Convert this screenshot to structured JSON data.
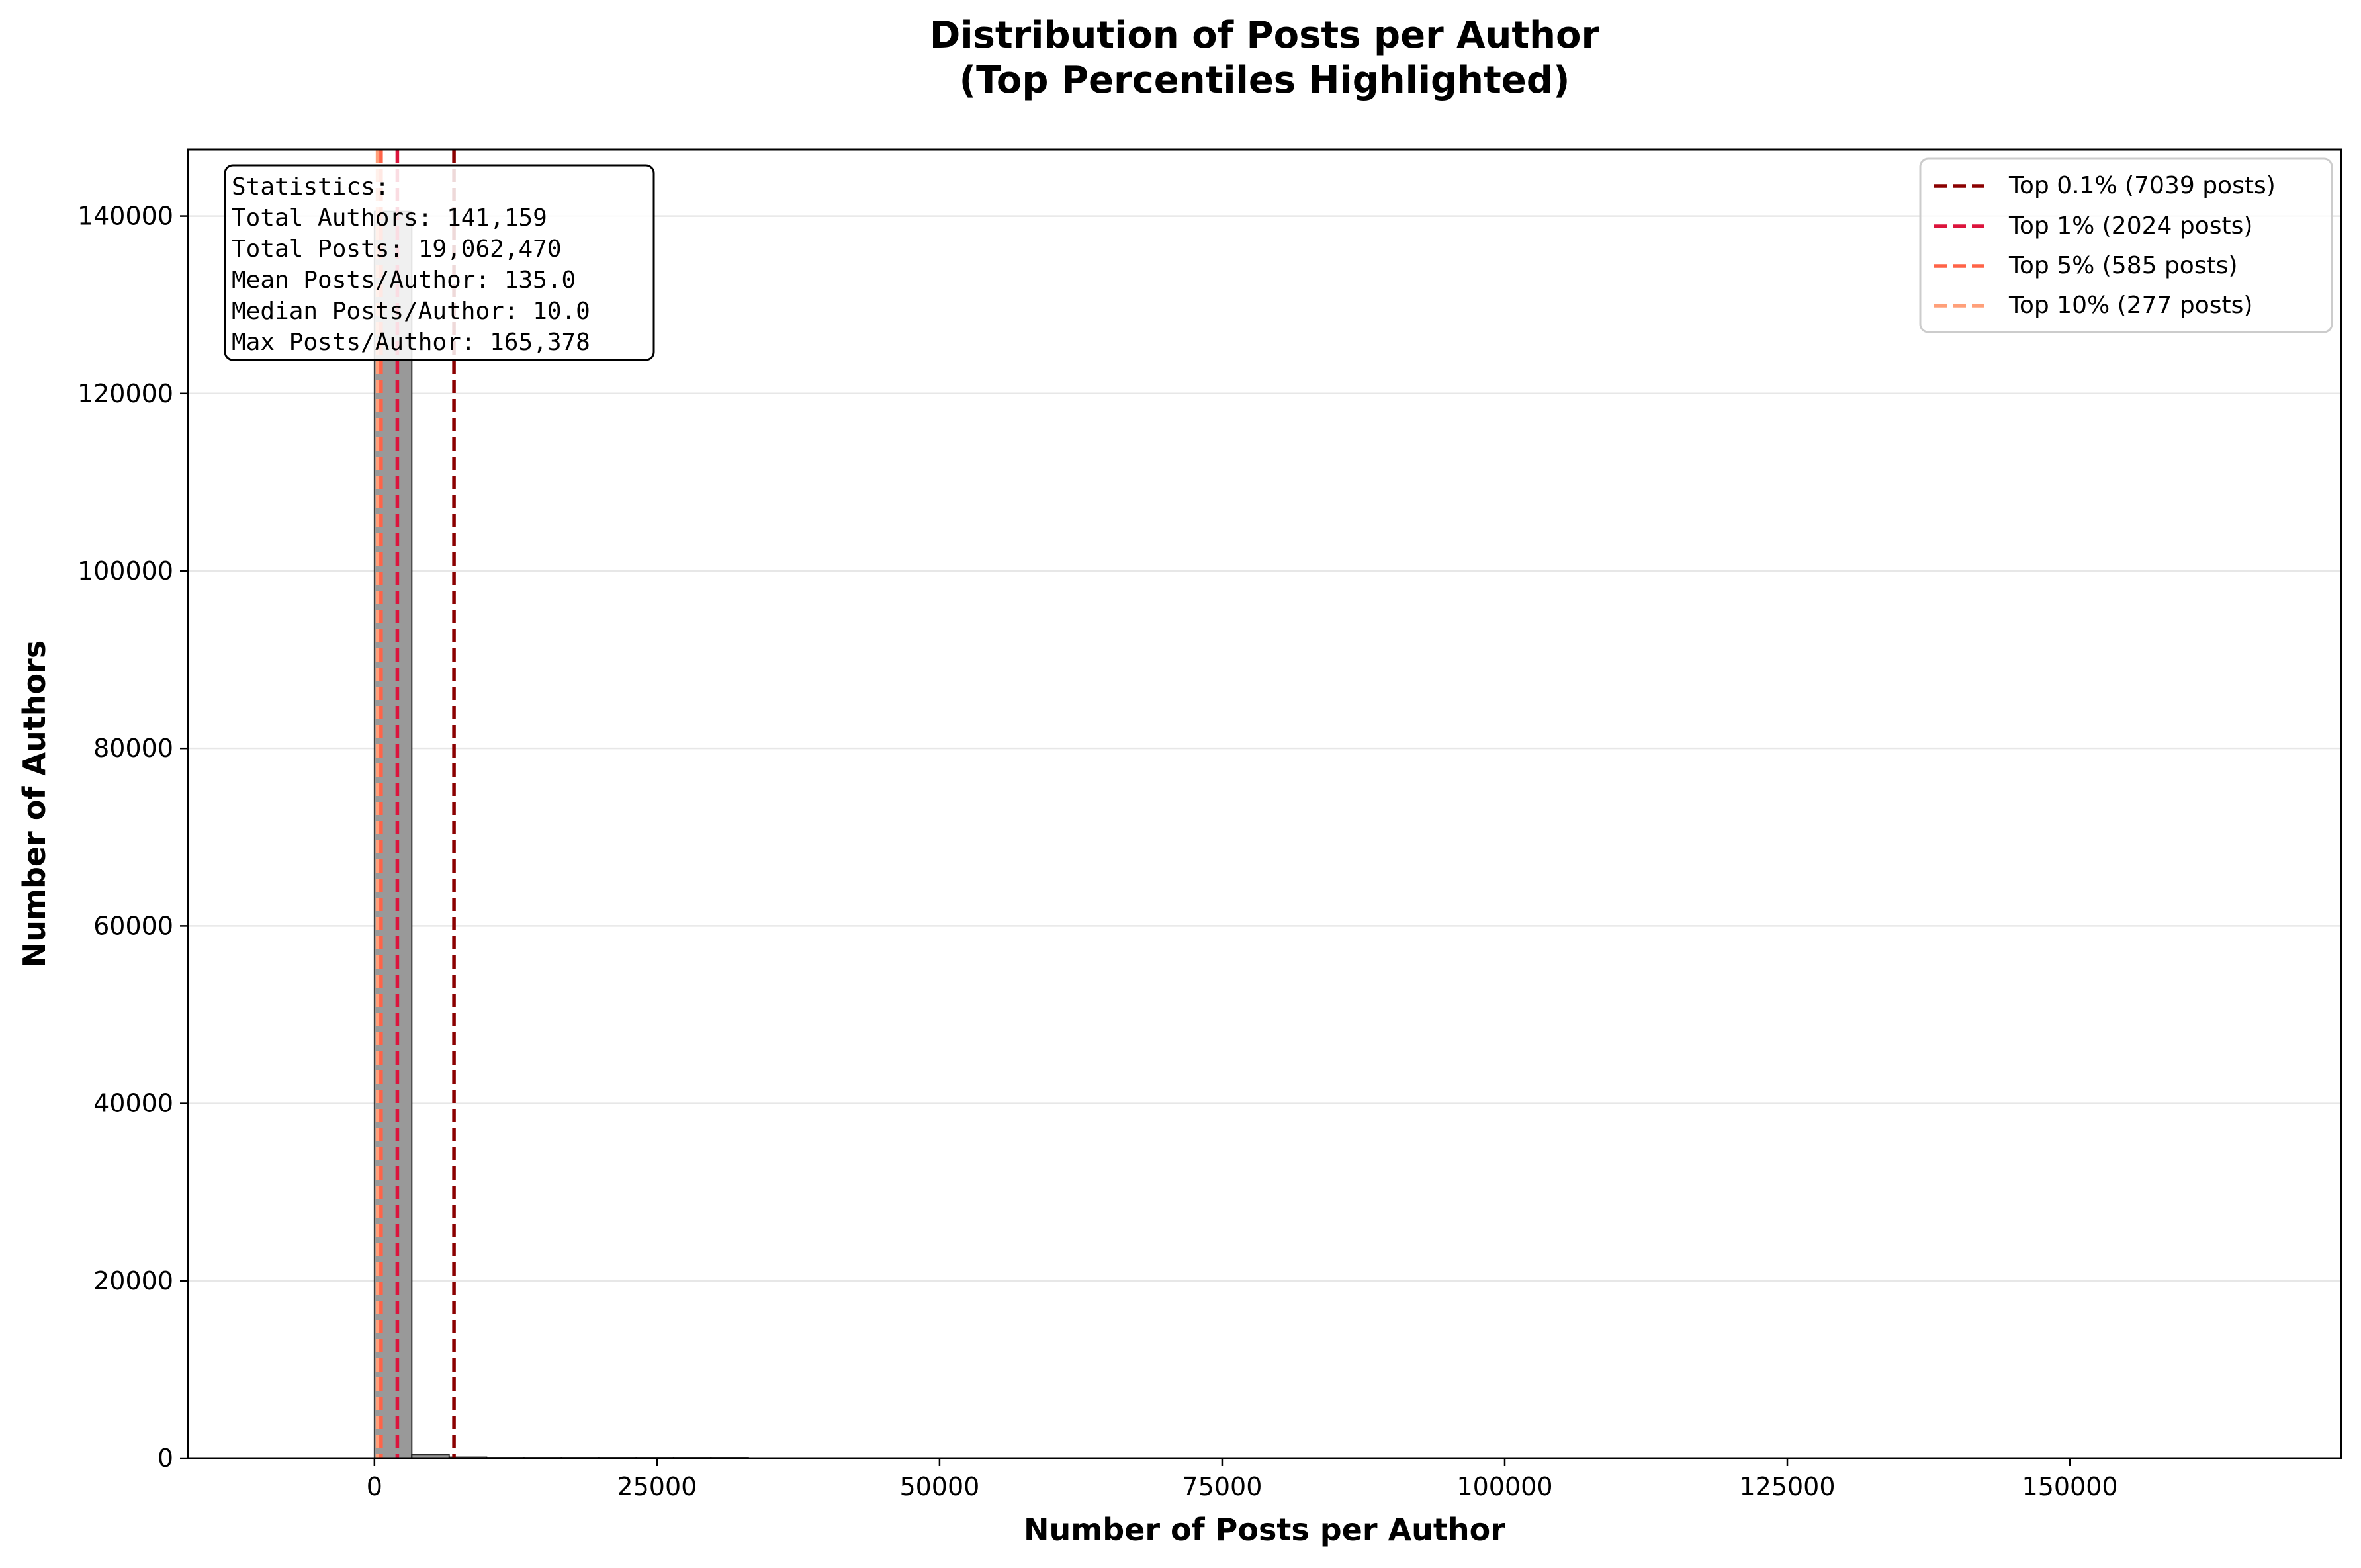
{
  "chart_data": {
    "type": "bar",
    "title": [
      "Distribution of Posts per Author",
      "(Top Percentiles Highlighted)"
    ],
    "xlabel": "Number of Posts per Author",
    "ylabel": "Number of Authors",
    "xlim": [
      -16500,
      174000
    ],
    "ylim": [
      0,
      147500
    ],
    "xticks": [
      0,
      25000,
      50000,
      75000,
      100000,
      125000,
      150000
    ],
    "yticks": [
      0,
      20000,
      40000,
      60000,
      80000,
      100000,
      120000,
      140000
    ],
    "grid": "y",
    "bar_color": "#999999",
    "bins": [
      {
        "x0": 0,
        "x1": 3308,
        "count": 140520
      },
      {
        "x0": 3308,
        "x1": 6615,
        "count": 430
      },
      {
        "x0": 6615,
        "x1": 9923,
        "count": 110
      },
      {
        "x0": 9923,
        "x1": 13230,
        "count": 40
      },
      {
        "x0": 13230,
        "x1": 16538,
        "count": 20
      },
      {
        "x0": 16538,
        "x1": 19845,
        "count": 12
      },
      {
        "x0": 19845,
        "x1": 23153,
        "count": 8
      },
      {
        "x0": 23153,
        "x1": 26460,
        "count": 5
      },
      {
        "x0": 26460,
        "x1": 29768,
        "count": 4
      },
      {
        "x0": 29768,
        "x1": 33076,
        "count": 3
      }
    ],
    "percentile_lines": [
      {
        "label": "Top 0.1% (7039 posts)",
        "x": 7039,
        "color": "#8b0000"
      },
      {
        "label": "Top 1% (2024 posts)",
        "x": 2024,
        "color": "#dc143c"
      },
      {
        "label": "Top 5% (585 posts)",
        "x": 585,
        "color": "#ff6347"
      },
      {
        "label": "Top 10% (277 posts)",
        "x": 277,
        "color": "#ffa07a"
      }
    ],
    "legend_position": "top-right",
    "stats_box": [
      "Statistics:",
      "Total Authors: 141,159",
      "Total Posts: 19,062,470",
      "Mean Posts/Author: 135.0",
      "Median Posts/Author: 10.0",
      "Max Posts/Author: 165,378"
    ]
  }
}
